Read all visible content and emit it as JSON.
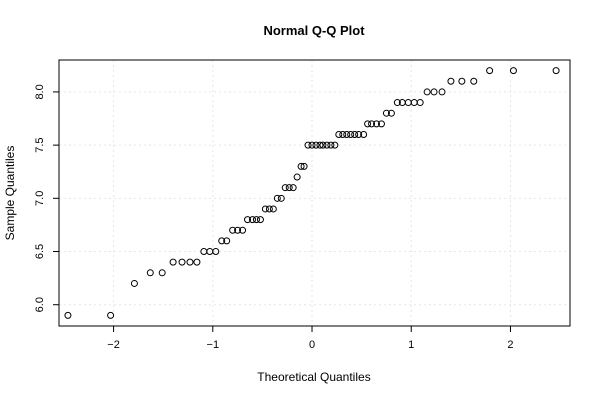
{
  "chart_data": {
    "type": "scatter",
    "title": "Normal Q-Q Plot",
    "xlabel": "Theoretical Quantiles",
    "ylabel": "Sample Quantiles",
    "xlim": [
      -2.55,
      2.6
    ],
    "ylim": [
      5.8,
      8.3
    ],
    "xticks": [
      -2,
      -1,
      0,
      1,
      2
    ],
    "xtick_labels": [
      "−2",
      "−1",
      "0",
      "1",
      "2"
    ],
    "yticks": [
      6.0,
      6.5,
      7.0,
      7.5,
      8.0
    ],
    "ytick_labels": [
      "6.0",
      "6.5",
      "7.0",
      "7.5",
      "8.0"
    ],
    "grid": true,
    "x": [
      -2.46,
      -2.03,
      -1.79,
      -1.63,
      -1.51,
      -1.4,
      -1.31,
      -1.23,
      -1.16,
      -1.09,
      -1.03,
      -0.97,
      -0.91,
      -0.86,
      -0.8,
      -0.75,
      -0.7,
      -0.65,
      -0.6,
      -0.56,
      -0.52,
      -0.47,
      -0.43,
      -0.39,
      -0.35,
      -0.31,
      -0.27,
      -0.23,
      -0.19,
      -0.15,
      -0.11,
      -0.08,
      -0.04,
      0.0,
      0.04,
      0.08,
      0.11,
      0.15,
      0.19,
      0.23,
      0.27,
      0.31,
      0.35,
      0.39,
      0.43,
      0.47,
      0.52,
      0.56,
      0.6,
      0.65,
      0.7,
      0.75,
      0.8,
      0.86,
      0.91,
      0.97,
      1.03,
      1.09,
      1.16,
      1.23,
      1.31,
      1.4,
      1.51,
      1.63,
      1.79,
      2.03,
      2.46
    ],
    "y": [
      5.9,
      5.9,
      6.2,
      6.3,
      6.3,
      6.4,
      6.4,
      6.4,
      6.4,
      6.5,
      6.5,
      6.5,
      6.6,
      6.6,
      6.7,
      6.7,
      6.7,
      6.8,
      6.8,
      6.8,
      6.8,
      6.9,
      6.9,
      6.9,
      7.0,
      7.0,
      7.1,
      7.1,
      7.1,
      7.2,
      7.3,
      7.3,
      7.5,
      7.5,
      7.5,
      7.5,
      7.5,
      7.5,
      7.5,
      7.5,
      7.6,
      7.6,
      7.6,
      7.6,
      7.6,
      7.6,
      7.6,
      7.7,
      7.7,
      7.7,
      7.7,
      7.8,
      7.8,
      7.9,
      7.9,
      7.9,
      7.9,
      7.9,
      8.0,
      8.0,
      8.0,
      8.1,
      8.1,
      8.1,
      8.2,
      8.2,
      8.2
    ]
  }
}
